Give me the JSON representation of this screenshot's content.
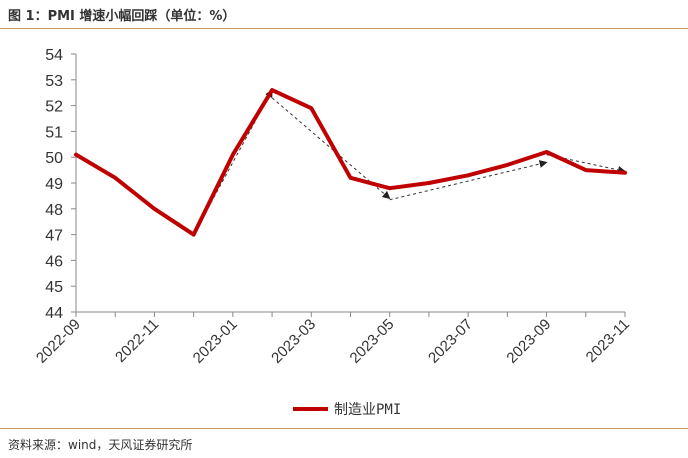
{
  "header": {
    "title": "图 1：PMI 增速小幅回踩（单位：%）"
  },
  "footer": {
    "source": "资料来源：wind，天风证券研究所"
  },
  "colors": {
    "line": "#c00000",
    "rule": "#c8a25a",
    "axis": "#888888",
    "arrow": "#333333"
  },
  "chart_data": {
    "type": "line",
    "title": "",
    "xlabel": "",
    "ylabel": "",
    "x": [
      "2022-09",
      "2022-10",
      "2022-11",
      "2022-12",
      "2023-01",
      "2023-02",
      "2023-03",
      "2023-04",
      "2023-05",
      "2023-06",
      "2023-07",
      "2023-08",
      "2023-09",
      "2023-10",
      "2023-11"
    ],
    "x_tick_labels": [
      "2022-09",
      "2022-11",
      "2023-01",
      "2023-03",
      "2023-05",
      "2023-07",
      "2023-09",
      "2023-11"
    ],
    "y_ticks": [
      44,
      45,
      46,
      47,
      48,
      49,
      50,
      51,
      52,
      53,
      54
    ],
    "ylim": [
      44,
      54
    ],
    "grid": false,
    "legend_position": "bottom-center",
    "series": [
      {
        "name": "制造业PMI",
        "values": [
          50.1,
          49.2,
          48.0,
          47.0,
          50.1,
          52.6,
          51.9,
          49.2,
          48.8,
          49.0,
          49.3,
          49.7,
          50.2,
          49.5,
          49.4
        ]
      }
    ],
    "annotations": [
      {
        "type": "dashed-arrow",
        "from": [
          "2022-12",
          47.0
        ],
        "to": [
          "2023-02",
          52.6
        ]
      },
      {
        "type": "dashed-arrow",
        "from": [
          "2023-02",
          52.3
        ],
        "to": [
          "2023-05",
          48.4
        ]
      },
      {
        "type": "dashed-arrow",
        "from": [
          "2023-05",
          48.35
        ],
        "to": [
          "2023-09",
          49.8
        ]
      },
      {
        "type": "dashed-arrow",
        "from": [
          "2023-09",
          50.1
        ],
        "to": [
          "2023-11",
          49.45
        ]
      }
    ]
  }
}
